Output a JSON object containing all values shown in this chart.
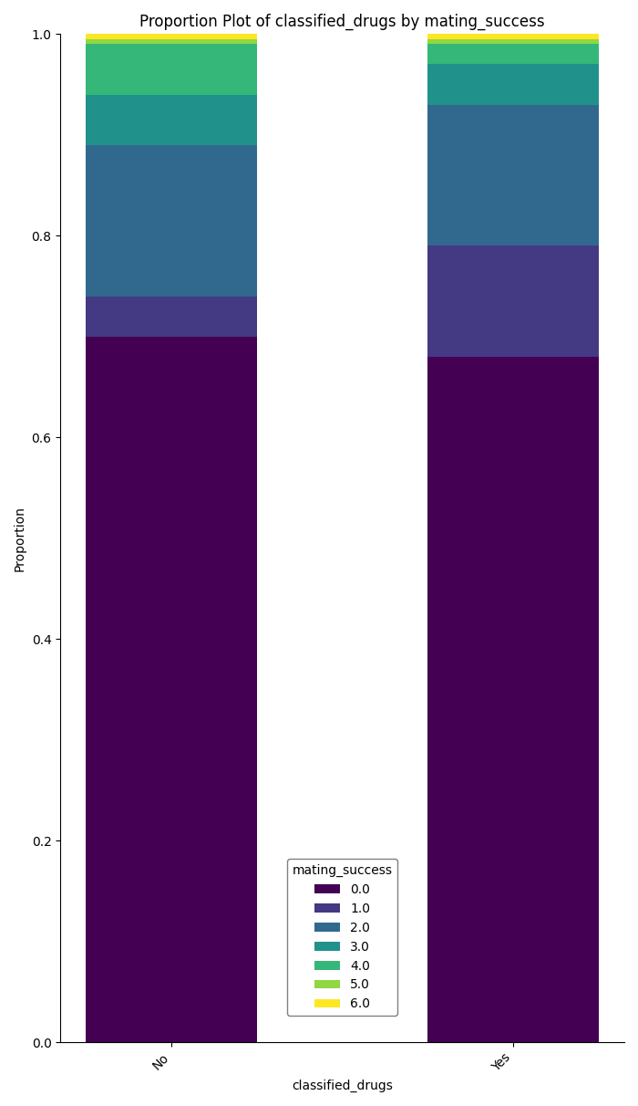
{
  "title": "Proportion Plot of classified_drugs by mating_success",
  "xlabel": "classified_drugs",
  "ylabel": "Proportion",
  "categories": [
    "No",
    "Yes"
  ],
  "legend_title": "mating_success",
  "legend_labels": [
    "0.0",
    "1.0",
    "2.0",
    "3.0",
    "4.0",
    "5.0",
    "6.0"
  ],
  "proportions": {
    "No": [
      0.7,
      0.04,
      0.15,
      0.05,
      0.05,
      0.005,
      0.005
    ],
    "Yes": [
      0.68,
      0.11,
      0.14,
      0.04,
      0.02,
      0.005,
      0.005
    ]
  },
  "ylim": [
    0.0,
    1.0
  ],
  "figsize": [
    7.0,
    12.12
  ],
  "dpi": 100,
  "bar_width": 0.5
}
